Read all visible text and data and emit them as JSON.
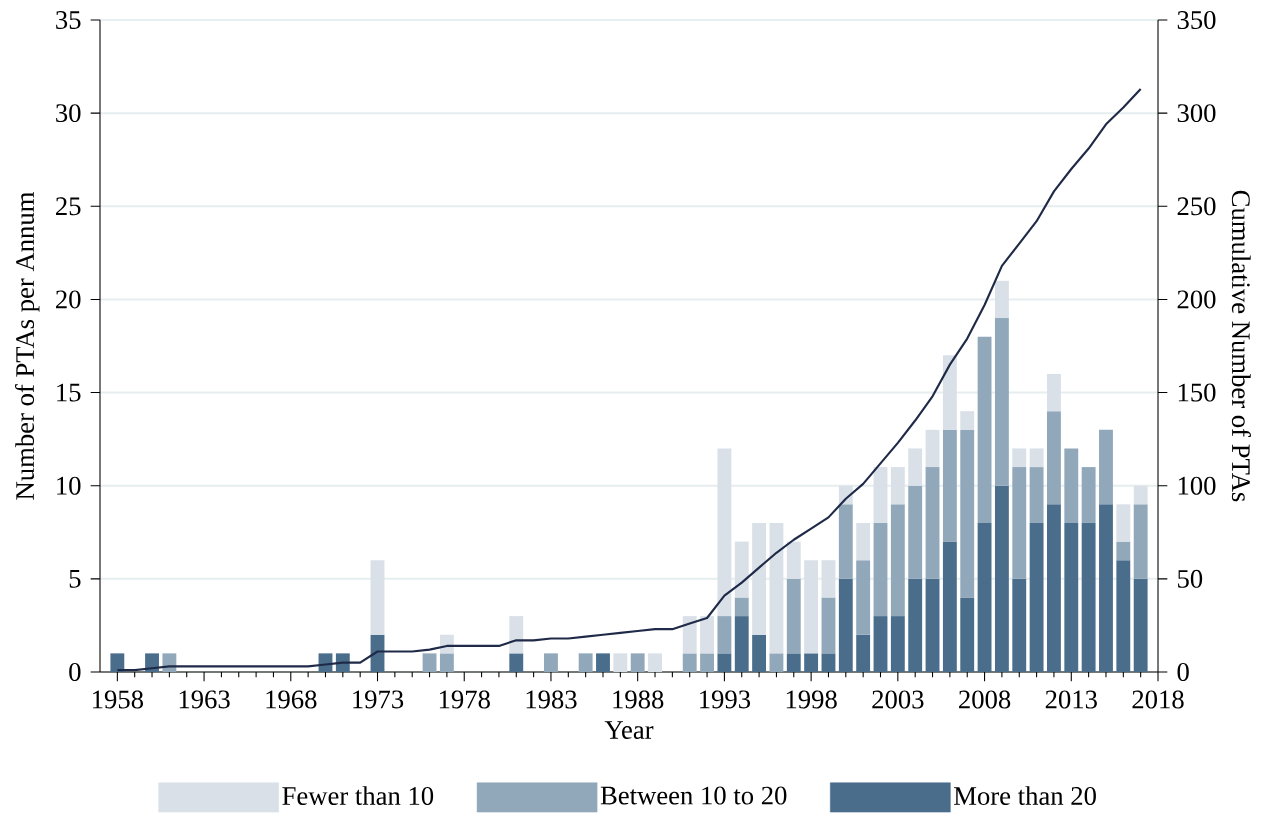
{
  "chart_data": {
    "type": "bar",
    "stacked": true,
    "xlabel": "Year",
    "ylabel": "Number of PTAs per Annum",
    "y2label": "Cumulative Number of PTAs",
    "x": [
      1958,
      1959,
      1960,
      1961,
      1962,
      1963,
      1964,
      1965,
      1966,
      1967,
      1968,
      1969,
      1970,
      1971,
      1972,
      1973,
      1974,
      1975,
      1976,
      1977,
      1978,
      1979,
      1980,
      1981,
      1982,
      1983,
      1984,
      1985,
      1986,
      1987,
      1988,
      1989,
      1990,
      1991,
      1992,
      1993,
      1994,
      1995,
      1996,
      1997,
      1998,
      1999,
      2000,
      2001,
      2002,
      2003,
      2004,
      2005,
      2006,
      2007,
      2008,
      2009,
      2010,
      2011,
      2012,
      2013,
      2014,
      2015,
      2016,
      2017
    ],
    "series": [
      {
        "name": "More than 20",
        "color": "#4a6d8c",
        "values": [
          1,
          null,
          1,
          null,
          null,
          null,
          null,
          null,
          null,
          null,
          null,
          null,
          1,
          1,
          null,
          2,
          null,
          null,
          null,
          null,
          null,
          null,
          null,
          1,
          null,
          null,
          null,
          null,
          1,
          null,
          null,
          null,
          null,
          null,
          null,
          1,
          3,
          2,
          null,
          1,
          1,
          1,
          5,
          2,
          3,
          3,
          5,
          5,
          7,
          4,
          8,
          10,
          5,
          8,
          9,
          8,
          8,
          9,
          6,
          5
        ]
      },
      {
        "name": "Between 10 to 20",
        "color": "#91a8bb",
        "values": [
          null,
          null,
          null,
          1,
          null,
          null,
          null,
          null,
          null,
          null,
          null,
          null,
          null,
          null,
          null,
          null,
          null,
          null,
          1,
          1,
          null,
          null,
          null,
          null,
          null,
          1,
          null,
          1,
          null,
          null,
          1,
          null,
          null,
          1,
          1,
          2,
          1,
          null,
          1,
          4,
          null,
          3,
          4,
          4,
          5,
          6,
          5,
          6,
          6,
          9,
          10,
          9,
          6,
          3,
          5,
          4,
          3,
          4,
          1,
          4
        ]
      },
      {
        "name": "Fewer than 10",
        "color": "#d9e0e8",
        "values": [
          null,
          null,
          null,
          null,
          null,
          null,
          null,
          null,
          null,
          null,
          null,
          null,
          null,
          null,
          null,
          4,
          null,
          null,
          null,
          1,
          null,
          null,
          null,
          2,
          null,
          null,
          null,
          null,
          null,
          1,
          null,
          1,
          null,
          2,
          2,
          9,
          3,
          6,
          7,
          2,
          5,
          2,
          1,
          2,
          3,
          2,
          2,
          2,
          4,
          1,
          null,
          2,
          1,
          1,
          2,
          null,
          null,
          null,
          2,
          1
        ]
      },
      {
        "type": "line",
        "axis": "y2",
        "color": "#1f2a48",
        "values": [
          1,
          1,
          2,
          3,
          3,
          3,
          3,
          3,
          3,
          3,
          3,
          3,
          4,
          5,
          5,
          11,
          11,
          11,
          12,
          14,
          14,
          14,
          14,
          17,
          17,
          18,
          18,
          19,
          20,
          21,
          22,
          23,
          23,
          26,
          29,
          41,
          48,
          56,
          64,
          71,
          77,
          83,
          93,
          101,
          112,
          123,
          135,
          148,
          165,
          179,
          197,
          218,
          230,
          242,
          258,
          270,
          281,
          294,
          303,
          313
        ]
      }
    ],
    "xlim": [
      1957,
      2018
    ],
    "xticks": [
      1958,
      {
        "value": 1959,
        "label": null
      },
      {
        "value": 1960,
        "label": null
      },
      {
        "value": 1961,
        "label": null
      },
      {
        "value": 1962,
        "label": null
      },
      1963,
      {
        "value": 1964,
        "label": null
      },
      {
        "value": 1965,
        "label": null
      },
      {
        "value": 1966,
        "label": null
      },
      {
        "value": 1967,
        "label": null
      },
      1968,
      {
        "value": 1969,
        "label": null
      },
      {
        "value": 1970,
        "label": null
      },
      {
        "value": 1971,
        "label": null
      },
      {
        "value": 1972,
        "label": null
      },
      1973,
      {
        "value": 1974,
        "label": null
      },
      {
        "value": 1975,
        "label": null
      },
      {
        "value": 1976,
        "label": null
      },
      {
        "value": 1977,
        "label": null
      },
      1978,
      {
        "value": 1979,
        "label": null
      },
      {
        "value": 1980,
        "label": null
      },
      {
        "value": 1981,
        "label": null
      },
      {
        "value": 1982,
        "label": null
      },
      1983,
      {
        "value": 1984,
        "label": null
      },
      {
        "value": 1985,
        "label": null
      },
      {
        "value": 1986,
        "label": null
      },
      {
        "value": 1987,
        "label": null
      },
      1988,
      {
        "value": 1989,
        "label": null
      },
      {
        "value": 1990,
        "label": null
      },
      {
        "value": 1991,
        "label": null
      },
      {
        "value": 1992,
        "label": null
      },
      1993,
      {
        "value": 1994,
        "label": null
      },
      {
        "value": 1995,
        "label": null
      },
      {
        "value": 1996,
        "label": null
      },
      {
        "value": 1997,
        "label": null
      },
      1998,
      {
        "value": 1999,
        "label": null
      },
      {
        "value": 2000,
        "label": null
      },
      {
        "value": 2001,
        "label": null
      },
      {
        "value": 2002,
        "label": null
      },
      2003,
      {
        "value": 2004,
        "label": null
      },
      {
        "value": 2005,
        "label": null
      },
      {
        "value": 2006,
        "label": null
      },
      {
        "value": 2007,
        "label": null
      },
      2008,
      {
        "value": 2009,
        "label": null
      },
      {
        "value": 2010,
        "label": null
      },
      {
        "value": 2011,
        "label": null
      },
      {
        "value": 2012,
        "label": null
      },
      2013,
      {
        "value": 2014,
        "label": null
      },
      {
        "value": 2015,
        "label": null
      },
      {
        "value": 2016,
        "label": null
      },
      {
        "value": 2017,
        "label": null
      },
      2018
    ],
    "ylim": [
      0,
      35
    ],
    "yticks": [
      0,
      5,
      10,
      15,
      20,
      25,
      30,
      35
    ],
    "y2lim": [
      0,
      350
    ],
    "y2ticks": [
      0,
      50,
      100,
      150,
      200,
      250,
      300,
      350
    ],
    "grid": "y",
    "legend": "bottom"
  }
}
